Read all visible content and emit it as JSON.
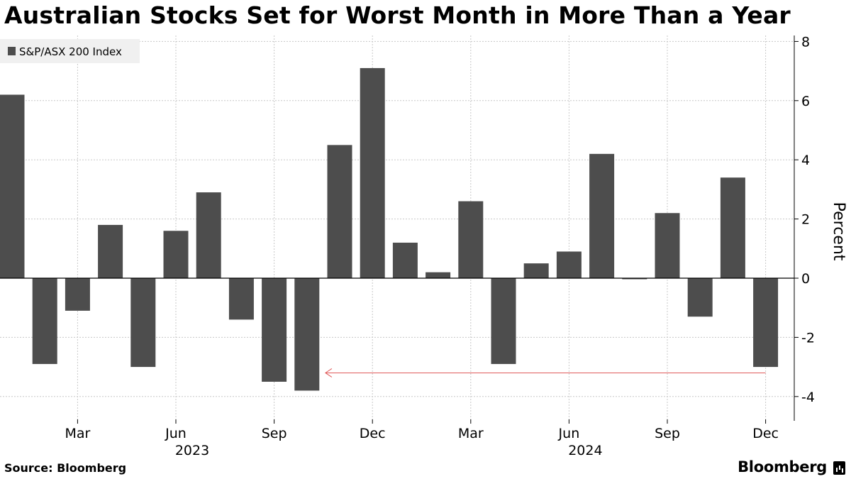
{
  "header": {
    "title": "Australian Stocks Set for Worst Month in More Than a Year"
  },
  "footer": {
    "source": "Source: Bloomberg",
    "brand": "Bloomberg"
  },
  "chart_data": {
    "type": "bar",
    "title": "Australian Stocks Set for Worst Month in More Than a Year",
    "ylabel": "Percent",
    "xlabel": "",
    "ylim": [
      -4.8,
      8.3
    ],
    "yticks": [
      8,
      6,
      4,
      2,
      0,
      -2,
      -4
    ],
    "ytick_labels": [
      "8",
      "6",
      "4",
      "2",
      "0",
      "-2",
      "-4"
    ],
    "grid": true,
    "legend": {
      "position": "top-left",
      "entries": [
        "S&P/ASX 200 Index"
      ]
    },
    "bar_color": "#4d4d4d",
    "annotation_color": "#e05a5a",
    "categories": [
      "Jan 2023",
      "Feb 2023",
      "Mar 2023",
      "Apr 2023",
      "May 2023",
      "Jun 2023",
      "Jul 2023",
      "Aug 2023",
      "Sep 2023",
      "Oct 2023",
      "Nov 2023",
      "Dec 2023",
      "Jan 2024",
      "Feb 2024",
      "Mar 2024",
      "Apr 2024",
      "May 2024",
      "Jun 2024",
      "Jul 2024",
      "Aug 2024",
      "Sep 2024",
      "Oct 2024",
      "Nov 2024",
      "Dec 2024"
    ],
    "series": [
      {
        "name": "S&P/ASX 200 Index",
        "values": [
          6.2,
          -2.9,
          -1.1,
          1.8,
          -3.0,
          1.6,
          2.9,
          -1.4,
          -3.5,
          -3.8,
          4.5,
          7.1,
          1.2,
          0.2,
          2.6,
          -2.9,
          0.5,
          0.9,
          4.2,
          0.0,
          2.2,
          -1.3,
          3.4,
          -3.0
        ]
      }
    ],
    "xtick_labels": [
      {
        "label": "Mar",
        "index": 2
      },
      {
        "label": "Jun",
        "index": 5
      },
      {
        "label": "Sep",
        "index": 8
      },
      {
        "label": "Dec",
        "index": 11
      },
      {
        "label": "Mar",
        "index": 14
      },
      {
        "label": "Jun",
        "index": 17
      },
      {
        "label": "Sep",
        "index": 20
      },
      {
        "label": "Dec",
        "index": 23
      }
    ],
    "year_labels": [
      {
        "label": "2023",
        "index": 5
      },
      {
        "label": "2024",
        "index": 17
      }
    ],
    "annotations": [
      {
        "type": "arrow",
        "from_index": 23,
        "to_index": 9.5,
        "y": -3.2,
        "meaning": "Dec 2024 decline compared back to Oct 2023"
      }
    ]
  }
}
